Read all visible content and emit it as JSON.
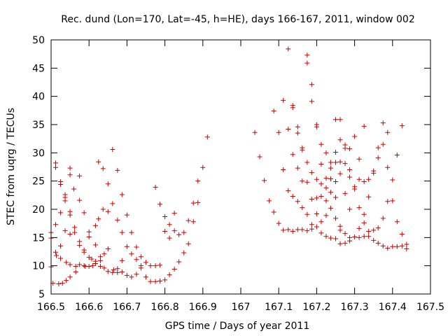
{
  "chart_data": {
    "type": "scatter",
    "title": "Rec. dund (Lon=170, Lat=-45, h=HE), days 166-167, 2011, window 002",
    "xlabel": "GPS time / Days of year 2011",
    "ylabel": "STEC from uqrg / TECUs",
    "xlim": [
      166.5,
      167.5
    ],
    "ylim": [
      5,
      50
    ],
    "x_ticks": [
      "166.5",
      "166.6",
      "166.7",
      "166.8",
      "166.9",
      "167",
      "167.1",
      "167.2",
      "167.3",
      "167.4",
      "167.5"
    ],
    "y_ticks": [
      "5",
      "10",
      "15",
      "20",
      "25",
      "30",
      "35",
      "40",
      "45",
      "50"
    ],
    "grid": false,
    "legend": "none",
    "marker": "plus",
    "color": "#cc0000",
    "series": [
      {
        "points": [
          [
            166.5,
            15.9
          ],
          [
            166.5,
            14.9
          ],
          [
            166.5,
            9.8
          ],
          [
            166.505,
            6.9
          ],
          [
            166.512,
            27.4
          ],
          [
            166.512,
            28.2
          ],
          [
            166.512,
            17.3
          ],
          [
            166.512,
            12.4
          ],
          [
            166.514,
            11.8
          ],
          [
            166.52,
            6.8
          ],
          [
            166.525,
            24.9
          ],
          [
            166.525,
            24.4
          ],
          [
            166.525,
            19.4
          ],
          [
            166.525,
            13.5
          ],
          [
            166.525,
            11.3
          ],
          [
            166.53,
            6.9
          ],
          [
            166.537,
            22.6
          ],
          [
            166.537,
            22.1
          ],
          [
            166.537,
            21.5
          ],
          [
            166.537,
            16.2
          ],
          [
            166.54,
            10.6
          ],
          [
            166.54,
            7.4
          ],
          [
            166.55,
            27.3
          ],
          [
            166.55,
            26.1
          ],
          [
            166.55,
            19.6
          ],
          [
            166.55,
            19.0
          ],
          [
            166.55,
            15.6
          ],
          [
            166.55,
            10.2
          ],
          [
            166.55,
            8.0
          ],
          [
            166.56,
            23.6
          ],
          [
            166.562,
            16.8
          ],
          [
            166.562,
            15.9
          ],
          [
            166.565,
            9.9
          ],
          [
            166.565,
            8.9
          ],
          [
            166.575,
            25.9
          ],
          [
            166.575,
            21.6
          ],
          [
            166.575,
            14.3
          ],
          [
            166.575,
            13.6
          ],
          [
            166.575,
            10.2
          ],
          [
            166.587,
            19.4
          ],
          [
            166.587,
            12.8
          ],
          [
            166.587,
            12.4
          ],
          [
            166.587,
            10.0
          ],
          [
            166.59,
            9.9
          ],
          [
            166.6,
            16.0
          ],
          [
            166.6,
            15.1
          ],
          [
            166.6,
            11.5
          ],
          [
            166.6,
            9.9
          ],
          [
            166.607,
            11.2
          ],
          [
            166.61,
            10.0
          ],
          [
            166.617,
            17.1
          ],
          [
            166.617,
            13.7
          ],
          [
            166.617,
            10.8
          ],
          [
            166.617,
            10.4
          ],
          [
            166.625,
            28.4
          ],
          [
            166.625,
            18.3
          ],
          [
            166.63,
            11.6
          ],
          [
            166.63,
            10.9
          ],
          [
            166.63,
            9.9
          ],
          [
            166.637,
            27.2
          ],
          [
            166.637,
            20.0
          ],
          [
            166.64,
            12.1
          ],
          [
            166.64,
            9.6
          ],
          [
            166.65,
            24.5
          ],
          [
            166.65,
            19.6
          ],
          [
            166.65,
            13.0
          ],
          [
            166.65,
            9.0
          ],
          [
            166.662,
            30.6
          ],
          [
            166.662,
            21.0
          ],
          [
            166.662,
            8.8
          ],
          [
            166.665,
            9.3
          ],
          [
            166.675,
            26.9
          ],
          [
            166.675,
            18.1
          ],
          [
            166.675,
            8.8
          ],
          [
            166.675,
            9.5
          ],
          [
            166.687,
            22.6
          ],
          [
            166.687,
            15.9
          ],
          [
            166.687,
            10.9
          ],
          [
            166.687,
            8.9
          ],
          [
            166.7,
            19.0
          ],
          [
            166.7,
            13.4
          ],
          [
            166.7,
            8.3
          ],
          [
            166.712,
            15.9
          ],
          [
            166.712,
            12.1
          ],
          [
            166.712,
            8.0
          ],
          [
            166.725,
            13.3
          ],
          [
            166.725,
            11.1
          ],
          [
            166.725,
            8.5
          ],
          [
            166.737,
            11.6
          ],
          [
            166.737,
            10.0
          ],
          [
            166.737,
            9.6
          ],
          [
            166.75,
            10.6
          ],
          [
            166.75,
            8.0
          ],
          [
            166.762,
            10.0
          ],
          [
            166.762,
            7.2
          ],
          [
            166.775,
            23.9
          ],
          [
            166.775,
            10.0
          ],
          [
            166.775,
            7.2
          ],
          [
            166.787,
            20.9
          ],
          [
            166.787,
            10.1
          ],
          [
            166.787,
            7.3
          ],
          [
            166.8,
            18.7
          ],
          [
            166.8,
            16.1
          ],
          [
            166.8,
            7.5
          ],
          [
            166.812,
            17.3
          ],
          [
            166.812,
            14.9
          ],
          [
            166.812,
            8.4
          ],
          [
            166.825,
            19.3
          ],
          [
            166.825,
            16.2
          ],
          [
            166.825,
            9.4
          ],
          [
            166.837,
            15.5
          ],
          [
            166.837,
            10.7
          ],
          [
            166.85,
            15.9
          ],
          [
            166.85,
            12.3
          ],
          [
            166.862,
            18.0
          ],
          [
            166.862,
            13.9
          ],
          [
            166.875,
            21.1
          ],
          [
            166.875,
            17.8
          ],
          [
            166.887,
            25.0
          ],
          [
            166.887,
            21.2
          ],
          [
            166.9,
            27.4
          ],
          [
            166.912,
            32.8
          ],
          [
            167.037,
            33.6
          ],
          [
            167.05,
            29.3
          ],
          [
            167.062,
            25.1
          ],
          [
            167.075,
            21.5
          ],
          [
            167.087,
            37.4
          ],
          [
            167.087,
            19.5
          ],
          [
            167.1,
            33.6
          ],
          [
            167.1,
            17.5
          ],
          [
            167.112,
            39.3
          ],
          [
            167.112,
            27.0
          ],
          [
            167.112,
            16.3
          ],
          [
            167.125,
            48.4
          ],
          [
            167.125,
            34.2
          ],
          [
            167.125,
            23.3
          ],
          [
            167.125,
            16.4
          ],
          [
            167.137,
            38.4
          ],
          [
            167.137,
            38.0
          ],
          [
            167.137,
            29.7
          ],
          [
            167.137,
            22.3
          ],
          [
            167.137,
            16.1
          ],
          [
            167.15,
            34.6
          ],
          [
            167.15,
            33.5
          ],
          [
            167.15,
            27.3
          ],
          [
            167.15,
            21.4
          ],
          [
            167.15,
            16.4
          ],
          [
            167.162,
            30.9
          ],
          [
            167.162,
            30.5
          ],
          [
            167.162,
            25.0
          ],
          [
            167.162,
            20.3
          ],
          [
            167.162,
            16.4
          ],
          [
            167.175,
            47.3
          ],
          [
            167.175,
            45.9
          ],
          [
            167.175,
            28.3
          ],
          [
            167.175,
            24.8
          ],
          [
            167.175,
            19.1
          ],
          [
            167.175,
            16.2
          ],
          [
            167.187,
            42.1
          ],
          [
            167.187,
            39.1
          ],
          [
            167.187,
            26.5
          ],
          [
            167.187,
            21.8
          ],
          [
            167.187,
            17.3
          ],
          [
            167.187,
            16.5
          ],
          [
            167.2,
            35.0
          ],
          [
            167.2,
            34.6
          ],
          [
            167.2,
            25.3
          ],
          [
            167.2,
            22.0
          ],
          [
            167.2,
            19.2
          ],
          [
            167.2,
            16.9
          ],
          [
            167.212,
            31.5
          ],
          [
            167.212,
            28.0
          ],
          [
            167.212,
            24.5
          ],
          [
            167.212,
            22.3
          ],
          [
            167.212,
            17.8
          ],
          [
            167.212,
            15.8
          ],
          [
            167.225,
            30.0
          ],
          [
            167.225,
            25.5
          ],
          [
            167.225,
            23.8
          ],
          [
            167.225,
            21.5
          ],
          [
            167.225,
            18.9
          ],
          [
            167.225,
            15.2
          ],
          [
            167.237,
            28.3
          ],
          [
            167.237,
            27.3
          ],
          [
            167.237,
            25.4
          ],
          [
            167.237,
            23.0
          ],
          [
            167.237,
            20.2
          ],
          [
            167.237,
            14.9
          ],
          [
            167.25,
            35.9
          ],
          [
            167.25,
            30.1
          ],
          [
            167.25,
            28.3
          ],
          [
            167.25,
            24.9
          ],
          [
            167.25,
            22.1
          ],
          [
            167.25,
            18.4
          ],
          [
            167.25,
            14.8
          ],
          [
            167.262,
            35.9
          ],
          [
            167.262,
            32.3
          ],
          [
            167.262,
            28.4
          ],
          [
            167.262,
            26.3
          ],
          [
            167.262,
            17.0
          ],
          [
            167.262,
            16.3
          ],
          [
            167.262,
            13.9
          ],
          [
            167.275,
            31.4
          ],
          [
            167.275,
            30.8
          ],
          [
            167.275,
            28.1
          ],
          [
            167.275,
            22.8
          ],
          [
            167.275,
            15.7
          ],
          [
            167.275,
            14.0
          ],
          [
            167.287,
            30.7
          ],
          [
            167.287,
            27.0
          ],
          [
            167.287,
            25.7
          ],
          [
            167.287,
            20.0
          ],
          [
            167.287,
            15.0
          ],
          [
            167.287,
            14.4
          ],
          [
            167.3,
            32.9
          ],
          [
            167.3,
            24.0
          ],
          [
            167.3,
            23.6
          ],
          [
            167.3,
            15.1
          ],
          [
            167.312,
            28.9
          ],
          [
            167.312,
            25.3
          ],
          [
            167.312,
            20.3
          ],
          [
            167.312,
            16.6
          ],
          [
            167.312,
            15.0
          ],
          [
            167.325,
            34.7
          ],
          [
            167.325,
            24.9
          ],
          [
            167.325,
            19.1
          ],
          [
            167.325,
            17.6
          ],
          [
            167.325,
            15.2
          ],
          [
            167.337,
            25.3
          ],
          [
            167.337,
            22.2
          ],
          [
            167.337,
            16.1
          ],
          [
            167.337,
            15.2
          ],
          [
            167.35,
            26.8
          ],
          [
            167.35,
            26.4
          ],
          [
            167.35,
            16.3
          ],
          [
            167.35,
            14.5
          ],
          [
            167.362,
            30.9
          ],
          [
            167.362,
            29.1
          ],
          [
            167.362,
            16.7
          ],
          [
            167.362,
            14.0
          ],
          [
            167.375,
            35.3
          ],
          [
            167.375,
            31.5
          ],
          [
            167.375,
            18.4
          ],
          [
            167.375,
            13.5
          ],
          [
            167.387,
            33.6
          ],
          [
            167.387,
            27.4
          ],
          [
            167.387,
            21.4
          ],
          [
            167.387,
            13.1
          ],
          [
            167.4,
            25.2
          ],
          [
            167.4,
            21.5
          ],
          [
            167.4,
            13.4
          ],
          [
            167.412,
            29.6
          ],
          [
            167.412,
            17.8
          ],
          [
            167.412,
            13.4
          ],
          [
            167.425,
            34.8
          ],
          [
            167.425,
            15.6
          ],
          [
            167.425,
            13.5
          ],
          [
            167.437,
            13.8
          ],
          [
            167.437,
            13.0
          ]
        ]
      }
    ]
  }
}
